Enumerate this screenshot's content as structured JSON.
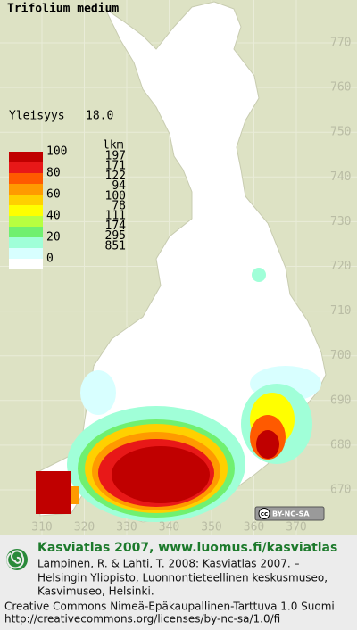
{
  "header": {
    "title": "Trifolium medium"
  },
  "frequency": {
    "label": "Yleisyys",
    "value": "18.0"
  },
  "legend": {
    "scale_labels": [
      100,
      80,
      60,
      40,
      20,
      0
    ],
    "count_header": "lkm",
    "counts": [
      197,
      171,
      122,
      94,
      100,
      78,
      111,
      174,
      295,
      851
    ],
    "colors": [
      "#c00000",
      "#e81818",
      "#ff5a00",
      "#ff9a00",
      "#ffd000",
      "#ffff00",
      "#b8ff40",
      "#70f070",
      "#a0ffd8",
      "#d8ffff"
    ]
  },
  "grid": {
    "northing_labels": [
      770,
      760,
      750,
      740,
      730,
      720,
      710,
      700,
      690,
      680,
      670
    ],
    "easting_labels": [
      310,
      320,
      330,
      340,
      350,
      360,
      370
    ]
  },
  "license_badge": {
    "icon": "cc",
    "text": "BY-NC-SA"
  },
  "footer": {
    "site": "Kasviatlas 2007, www.luomus.fi/kasviatlas",
    "citation": [
      "Lampinen, R. & Lahti, T. 2008: Kasviatlas 2007. –",
      "Helsingin Yliopisto, Luonnontieteellinen keskusmuseo,",
      "Kasvimuseo, Helsinki."
    ],
    "license": "Creative Commons Nimeä-Epäkaupallinen-Tarttuva 1.0 Suomi",
    "license_url": "http://creativecommons.org/licenses/by-nc-sa/1.0/fi"
  }
}
